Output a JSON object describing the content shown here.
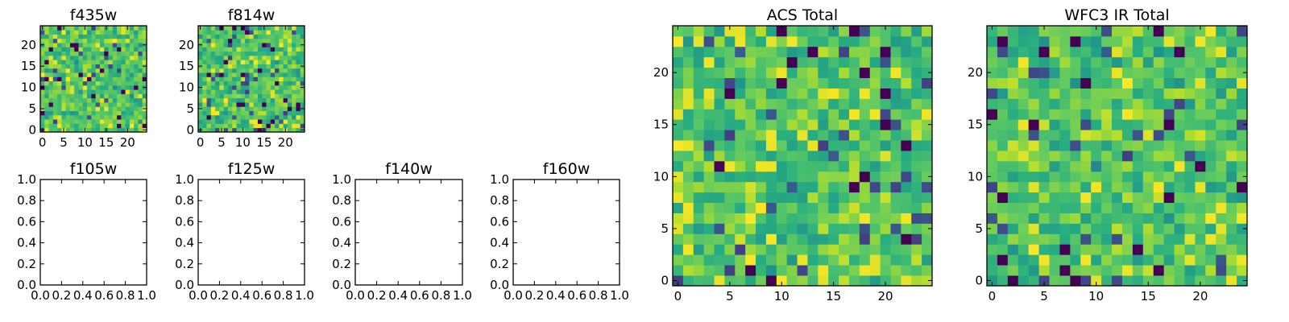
{
  "colormap": "viridis",
  "chart_data": [
    {
      "type": "heatmap",
      "title": "f435w",
      "grid_size": 25,
      "xlim": [
        -0.5,
        24.5
      ],
      "ylim": [
        -0.5,
        24.5
      ],
      "xticks": [
        0,
        5,
        10,
        15,
        20
      ],
      "yticks": [
        0,
        5,
        10,
        15,
        20
      ],
      "x_tick_labels": [
        "0",
        "5",
        "10",
        "15",
        "20"
      ],
      "y_tick_labels": [
        "0",
        "5",
        "10",
        "15",
        "20"
      ],
      "seed": 11,
      "value_range": [
        0,
        1
      ]
    },
    {
      "type": "heatmap",
      "title": "f814w",
      "grid_size": 25,
      "xlim": [
        -0.5,
        24.5
      ],
      "ylim": [
        -0.5,
        24.5
      ],
      "xticks": [
        0,
        5,
        10,
        15,
        20
      ],
      "yticks": [
        0,
        5,
        10,
        15,
        20
      ],
      "x_tick_labels": [
        "0",
        "5",
        "10",
        "15",
        "20"
      ],
      "y_tick_labels": [
        "0",
        "5",
        "10",
        "15",
        "20"
      ],
      "seed": 23,
      "value_range": [
        0,
        1
      ]
    },
    {
      "type": "empty",
      "title": "f105w",
      "xlim": [
        0,
        1
      ],
      "ylim": [
        0,
        1
      ],
      "xticks": [
        0,
        0.2,
        0.4,
        0.6,
        0.8,
        1.0
      ],
      "yticks": [
        0,
        0.2,
        0.4,
        0.6,
        0.8,
        1.0
      ],
      "x_tick_labels": [
        "0.0",
        "0.2",
        "0.4",
        "0.6",
        "0.8",
        "1.0"
      ],
      "y_tick_labels": [
        "0.0",
        "0.2",
        "0.4",
        "0.6",
        "0.8",
        "1.0"
      ]
    },
    {
      "type": "empty",
      "title": "f125w",
      "xlim": [
        0,
        1
      ],
      "ylim": [
        0,
        1
      ],
      "xticks": [
        0,
        0.2,
        0.4,
        0.6,
        0.8,
        1.0
      ],
      "yticks": [
        0,
        0.2,
        0.4,
        0.6,
        0.8,
        1.0
      ],
      "x_tick_labels": [
        "0.0",
        "0.2",
        "0.4",
        "0.6",
        "0.8",
        "1.0"
      ],
      "y_tick_labels": [
        "0.0",
        "0.2",
        "0.4",
        "0.6",
        "0.8",
        "1.0"
      ]
    },
    {
      "type": "empty",
      "title": "f140w",
      "xlim": [
        0,
        1
      ],
      "ylim": [
        0,
        1
      ],
      "xticks": [
        0,
        0.2,
        0.4,
        0.6,
        0.8,
        1.0
      ],
      "yticks": [
        0,
        0.2,
        0.4,
        0.6,
        0.8,
        1.0
      ],
      "x_tick_labels": [
        "0.0",
        "0.2",
        "0.4",
        "0.6",
        "0.8",
        "1.0"
      ],
      "y_tick_labels": [
        "0.0",
        "0.2",
        "0.4",
        "0.6",
        "0.8",
        "1.0"
      ]
    },
    {
      "type": "empty",
      "title": "f160w",
      "xlim": [
        0,
        1
      ],
      "ylim": [
        0,
        1
      ],
      "xticks": [
        0,
        0.2,
        0.4,
        0.6,
        0.8,
        1.0
      ],
      "yticks": [
        0,
        0.2,
        0.4,
        0.6,
        0.8,
        1.0
      ],
      "x_tick_labels": [
        "0.0",
        "0.2",
        "0.4",
        "0.6",
        "0.8",
        "1.0"
      ],
      "y_tick_labels": [
        "0.0",
        "0.2",
        "0.4",
        "0.6",
        "0.8",
        "1.0"
      ]
    },
    {
      "type": "heatmap",
      "title": "ACS Total",
      "grid_size": 25,
      "xlim": [
        -0.5,
        24.5
      ],
      "ylim": [
        -0.5,
        24.5
      ],
      "xticks": [
        0,
        5,
        10,
        15,
        20
      ],
      "yticks": [
        0,
        5,
        10,
        15,
        20
      ],
      "x_tick_labels": [
        "0",
        "5",
        "10",
        "15",
        "20"
      ],
      "y_tick_labels": [
        "0",
        "5",
        "10",
        "15",
        "20"
      ],
      "seed": 37,
      "value_range": [
        0,
        1
      ]
    },
    {
      "type": "heatmap",
      "title": "WFC3 IR Total",
      "grid_size": 25,
      "xlim": [
        -0.5,
        24.5
      ],
      "ylim": [
        -0.5,
        24.5
      ],
      "xticks": [
        0,
        5,
        10,
        15,
        20
      ],
      "yticks": [
        0,
        5,
        10,
        15,
        20
      ],
      "x_tick_labels": [
        "0",
        "5",
        "10",
        "15",
        "20"
      ],
      "y_tick_labels": [
        "0",
        "5",
        "10",
        "15",
        "20"
      ],
      "seed": 53,
      "value_range": [
        0,
        1
      ]
    }
  ]
}
